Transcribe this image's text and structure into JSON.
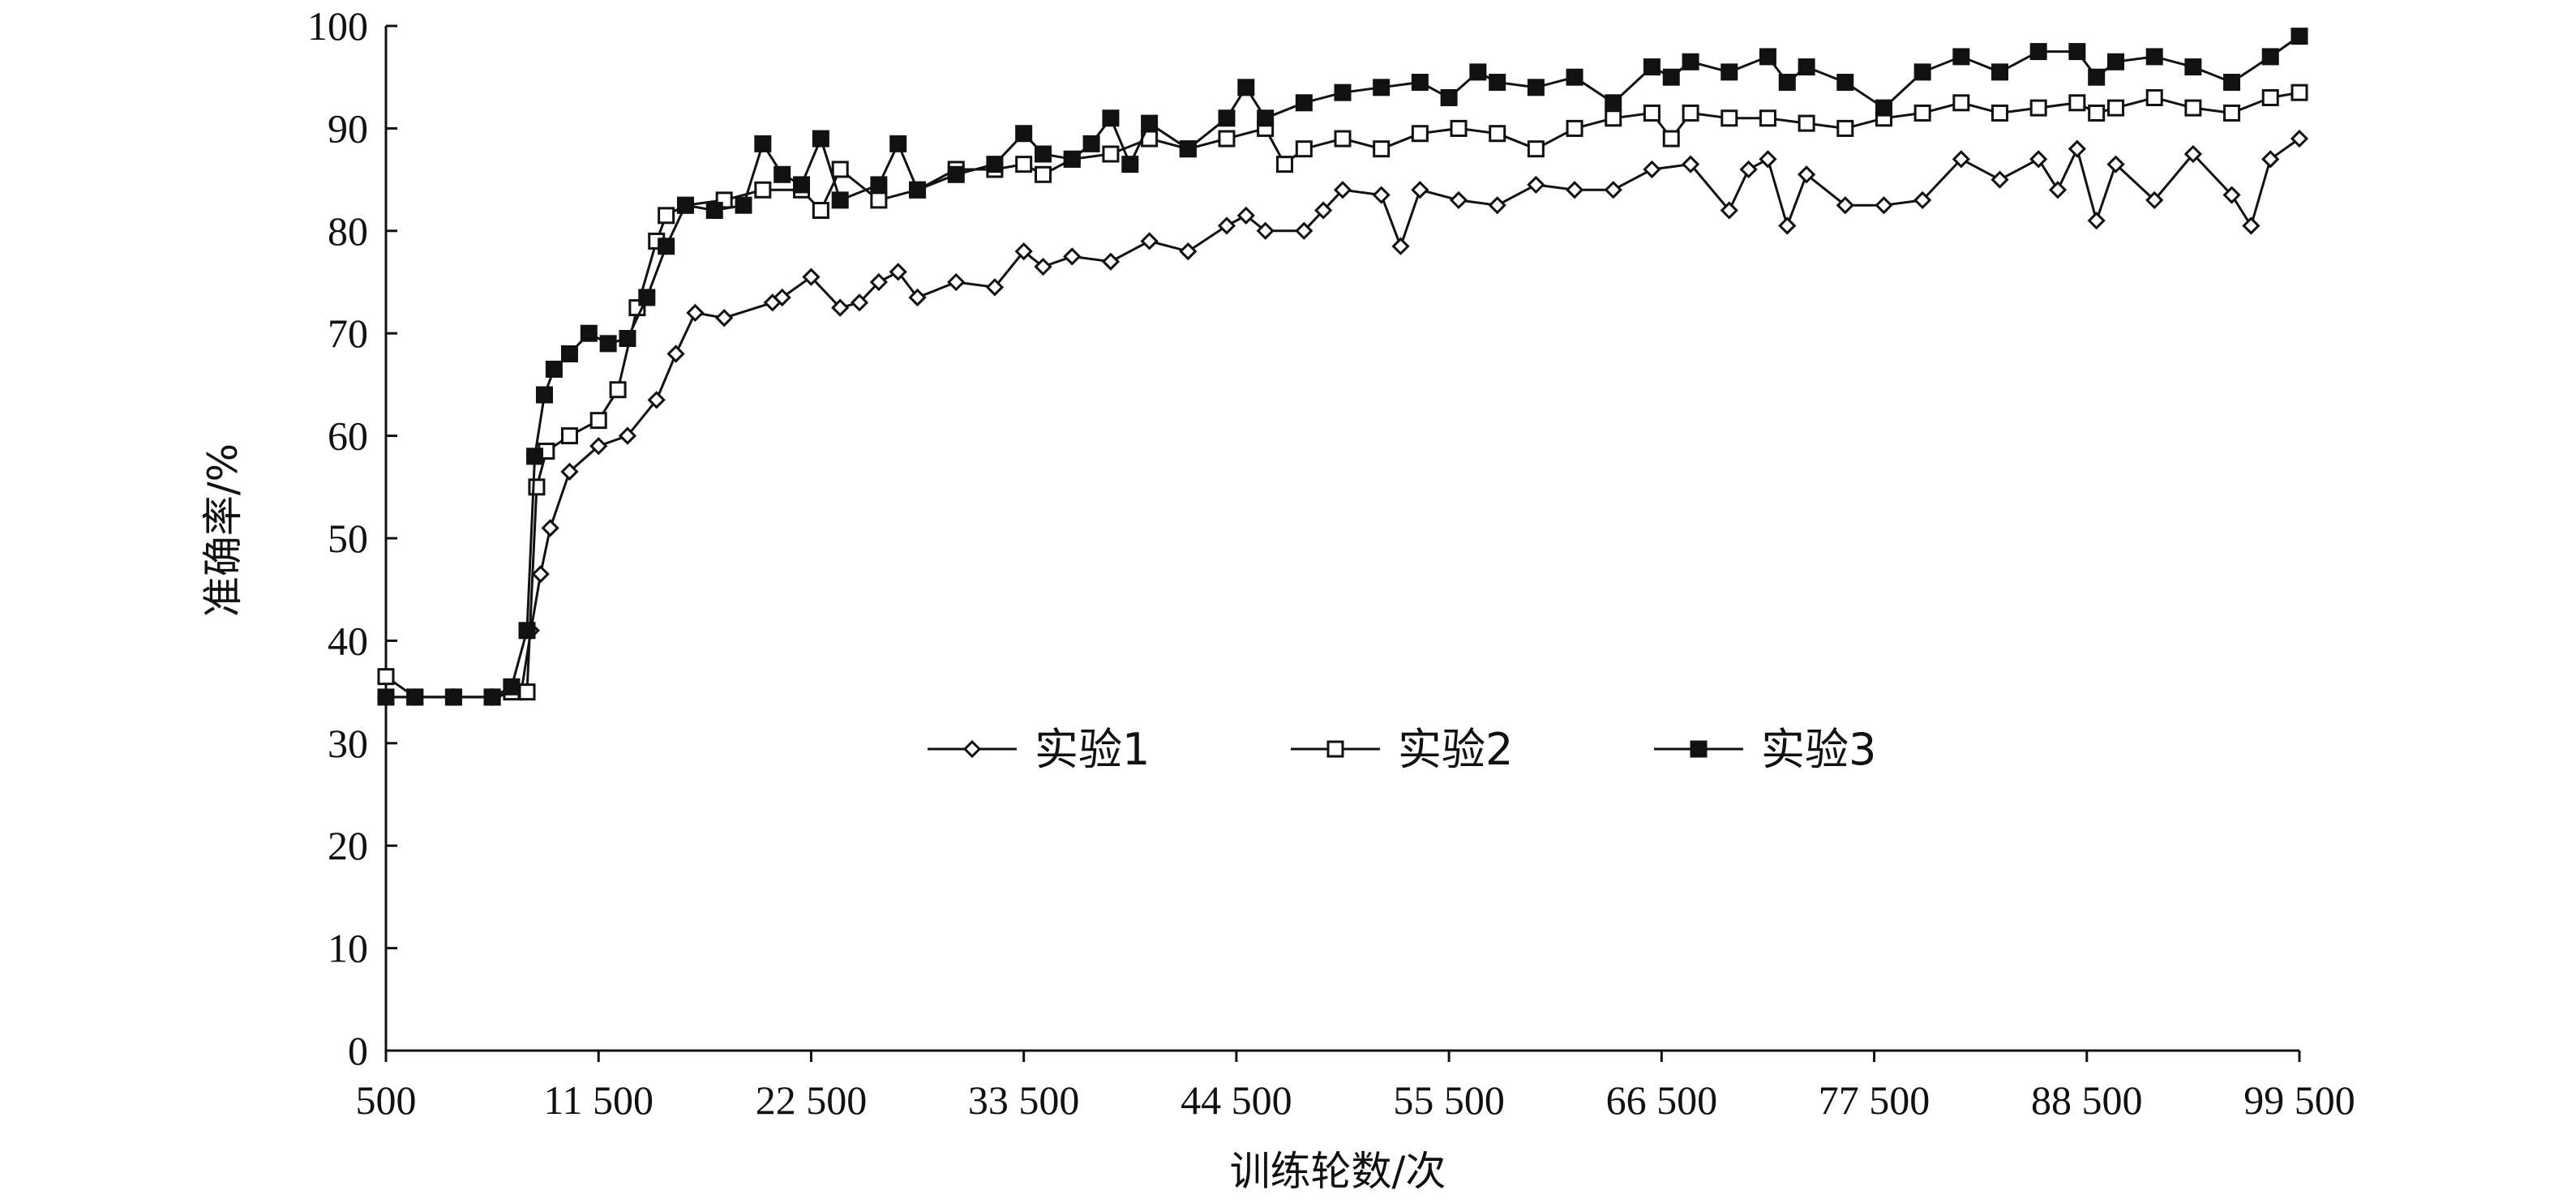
{
  "chart_data": {
    "type": "line",
    "title": "",
    "xlabel": "训练轮数/次",
    "ylabel": "准确率/%",
    "xlim": [
      500,
      99500
    ],
    "ylim": [
      0,
      100
    ],
    "x_ticks": [
      "500",
      "11 500",
      "22 500",
      "33 500",
      "44 500",
      "55 500",
      "66 500",
      "77 500",
      "88 500",
      "99 500"
    ],
    "y_ticks": [
      "0",
      "10",
      "20",
      "30",
      "40",
      "50",
      "60",
      "70",
      "80",
      "90",
      "100"
    ],
    "legend_position": "center",
    "grid": false,
    "colors": {
      "line": "#111111",
      "marker_fill_open": "#ffffff",
      "marker_fill_solid": "#111111"
    },
    "series": [
      {
        "name": "实验1",
        "marker": "diamond-open",
        "x": [
          500,
          2000,
          4000,
          6000,
          7500,
          8000,
          8500,
          9000,
          10000,
          11500,
          13000,
          14500,
          15500,
          16500,
          18000,
          20500,
          21000,
          22500,
          24000,
          25000,
          26000,
          27000,
          28000,
          30000,
          32000,
          33500,
          34500,
          36000,
          38000,
          40000,
          42000,
          44000,
          45000,
          46000,
          48000,
          49000,
          50000,
          52000,
          53000,
          54000,
          56000,
          58000,
          60000,
          62000,
          64000,
          66000,
          68000,
          70000,
          71000,
          72000,
          73000,
          74000,
          76000,
          78000,
          80000,
          82000,
          84000,
          86000,
          87000,
          88000,
          89000,
          90000,
          92000,
          94000,
          96000,
          97000,
          98000,
          99500
        ],
        "values": [
          34.5,
          34.5,
          34.5,
          34.5,
          35,
          41,
          46.5,
          51,
          56.5,
          59,
          60,
          63.5,
          68,
          72,
          71.5,
          73,
          73.5,
          75.5,
          72.5,
          73,
          75,
          76,
          73.5,
          75,
          74.5,
          78,
          76.5,
          77.5,
          77,
          79,
          78,
          80.5,
          81.5,
          80,
          80,
          82,
          84,
          83.5,
          78.5,
          84,
          83,
          82.5,
          84.5,
          84,
          84,
          86,
          86.5,
          82,
          86,
          87,
          80.5,
          85.5,
          82.5,
          82.5,
          83,
          87,
          85,
          87,
          84,
          88,
          81,
          86.5,
          83,
          87.5,
          83.5,
          80.5,
          87,
          89
        ]
      },
      {
        "name": "实验2",
        "marker": "square-open",
        "x": [
          500,
          2000,
          4000,
          6000,
          7000,
          7800,
          8300,
          8800,
          10000,
          11500,
          12500,
          13500,
          14500,
          15000,
          16000,
          18000,
          20000,
          22000,
          23000,
          24000,
          26000,
          28000,
          30000,
          32000,
          33500,
          34500,
          36000,
          38000,
          40000,
          42000,
          44000,
          46000,
          47000,
          48000,
          50000,
          52000,
          54000,
          56000,
          58000,
          60000,
          62000,
          64000,
          66000,
          67000,
          68000,
          70000,
          72000,
          74000,
          76000,
          78000,
          80000,
          82000,
          84000,
          86000,
          88000,
          89000,
          90000,
          92000,
          94000,
          96000,
          98000,
          99500
        ],
        "values": [
          36.5,
          34.5,
          34.5,
          34.5,
          35,
          35,
          55,
          58.5,
          60,
          61.5,
          64.5,
          72.5,
          79,
          81.5,
          82.5,
          83,
          84,
          84,
          82,
          86,
          83,
          84,
          86,
          86,
          86.5,
          85.5,
          87,
          87.5,
          89,
          88,
          89,
          90,
          86.5,
          88,
          89,
          88,
          89.5,
          90,
          89.5,
          88,
          90,
          91,
          91.5,
          89,
          91.5,
          91,
          91,
          90.5,
          90,
          91,
          91.5,
          92.5,
          91.5,
          92,
          92.5,
          91.5,
          92,
          93,
          92,
          91.5,
          93,
          93.5
        ]
      },
      {
        "name": "实验3",
        "marker": "square-filled",
        "x": [
          500,
          2000,
          4000,
          6000,
          7000,
          7800,
          8200,
          8700,
          9200,
          10000,
          11000,
          12000,
          13000,
          14000,
          15000,
          16000,
          17500,
          19000,
          20000,
          21000,
          22000,
          23000,
          24000,
          26000,
          27000,
          28000,
          30000,
          32000,
          33500,
          34500,
          36000,
          37000,
          38000,
          39000,
          40000,
          42000,
          44000,
          45000,
          46000,
          48000,
          50000,
          52000,
          54000,
          55500,
          57000,
          58000,
          60000,
          62000,
          64000,
          66000,
          67000,
          68000,
          70000,
          72000,
          73000,
          74000,
          76000,
          78000,
          80000,
          82000,
          84000,
          86000,
          88000,
          89000,
          90000,
          92000,
          94000,
          96000,
          98000,
          99500
        ],
        "values": [
          34.5,
          34.5,
          34.5,
          34.5,
          35.5,
          41,
          58,
          64,
          66.5,
          68,
          70,
          69,
          69.5,
          73.5,
          78.5,
          82.5,
          82,
          82.5,
          88.5,
          85.5,
          84.5,
          89,
          83,
          84.5,
          88.5,
          84,
          85.5,
          86.5,
          89.5,
          87.5,
          87,
          88.5,
          91,
          86.5,
          90.5,
          88,
          91,
          94,
          91,
          92.5,
          93.5,
          94,
          94.5,
          93,
          95.5,
          94.5,
          94,
          95,
          92.5,
          96,
          95,
          96.5,
          95.5,
          97,
          94.5,
          96,
          94.5,
          92,
          95.5,
          97,
          95.5,
          97.5,
          97.5,
          95,
          96.5,
          97,
          96,
          94.5,
          97,
          99
        ]
      }
    ]
  }
}
